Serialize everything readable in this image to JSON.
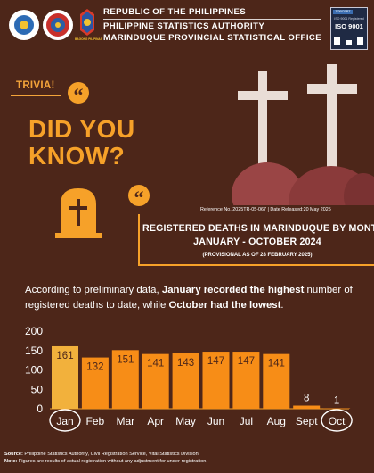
{
  "header": {
    "line1": "REPUBLIC OF THE PHILIPPINES",
    "line2": "PHILIPPINE STATISTICS AUTHORITY",
    "line3": "MARINDUQUE PROVINCIAL STATISTICAL OFFICE",
    "logo_caption": "BAGONG PILIPINAS",
    "iso_tag": "TOPCERT",
    "iso_sub": "ISO 9001 Registered",
    "iso_label": "ISO 9001"
  },
  "trivia_label": "TRIVIA!",
  "quote_glyph": "“",
  "did_you_know": "DID YOU KNOW?",
  "reference": "Reference No.:2025TR-05-067 | Date Released:20 May 2025",
  "headline": {
    "line1": "REGISTERED DEATHS IN MARINDUQUE BY MONTH",
    "line2": "JANUARY - OCTOBER 2024",
    "line3": "(PROVISIONAL AS OF 28 FEBRUARY 2025)"
  },
  "description": {
    "part1": "According to preliminary data, ",
    "bold1": "January recorded the highest",
    "part2": "number of registered deaths to date, while ",
    "bold2": "October had the lowest",
    "part3": "."
  },
  "chart_data": {
    "type": "bar",
    "categories": [
      "Jan",
      "Feb",
      "Mar",
      "Apr",
      "May",
      "Jun",
      "Jul",
      "Aug",
      "Sept",
      "Oct"
    ],
    "values": [
      161,
      132,
      151,
      141,
      143,
      147,
      147,
      141,
      8,
      1
    ],
    "ylim": [
      0,
      200
    ],
    "yticks": [
      0,
      50,
      100,
      150,
      200
    ],
    "highlighted_categories": [
      "Jan",
      "Oct"
    ],
    "grid": false,
    "colors": {
      "bar": "#f78d17",
      "highlight_bar": "#f2b13c",
      "label_on_bar": "#4d2619",
      "label_above": "#ffffff"
    }
  },
  "footer": {
    "source_label": "Source:",
    "source_text": " Philippine Statistics Authority, Civil Registration Service, Vital Statistics Division",
    "note_label": "Note:",
    "note_text": " Figures are results of actual registration without any adjustment for under-registration."
  },
  "colors": {
    "background": "#4d2619",
    "accent": "#f6a129",
    "grave": "#8a3a3a"
  }
}
